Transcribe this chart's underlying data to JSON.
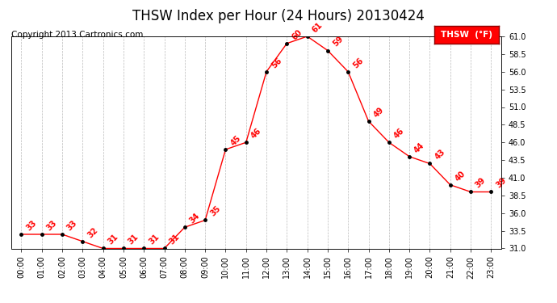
{
  "title": "THSW Index per Hour (24 Hours) 20130424",
  "copyright": "Copyright 2013 Cartronics.com",
  "legend_label": "THSW  (°F)",
  "hours": [
    0,
    1,
    2,
    3,
    4,
    5,
    6,
    7,
    8,
    9,
    10,
    11,
    12,
    13,
    14,
    15,
    16,
    17,
    18,
    19,
    20,
    21,
    22,
    23
  ],
  "values": [
    33,
    33,
    33,
    32,
    31,
    31,
    31,
    31,
    34,
    35,
    45,
    46,
    56,
    60,
    61,
    59,
    56,
    49,
    46,
    44,
    43,
    40,
    39,
    39
  ],
  "xlabels": [
    "00:00",
    "01:00",
    "02:00",
    "03:00",
    "04:00",
    "05:00",
    "06:00",
    "07:00",
    "08:00",
    "09:00",
    "10:00",
    "11:00",
    "12:00",
    "13:00",
    "14:00",
    "15:00",
    "16:00",
    "17:00",
    "18:00",
    "19:00",
    "20:00",
    "21:00",
    "22:00",
    "23:00"
  ],
  "ylim": [
    31.0,
    61.0
  ],
  "yticks": [
    31.0,
    33.5,
    36.0,
    38.5,
    41.0,
    43.5,
    46.0,
    48.5,
    51.0,
    53.5,
    56.0,
    58.5,
    61.0
  ],
  "line_color": "red",
  "marker_color": "black",
  "label_color": "red",
  "bg_color": "white",
  "grid_color": "#bbbbbb",
  "title_fontsize": 12,
  "copyright_fontsize": 7.5,
  "label_fontsize": 7,
  "tick_fontsize": 7
}
